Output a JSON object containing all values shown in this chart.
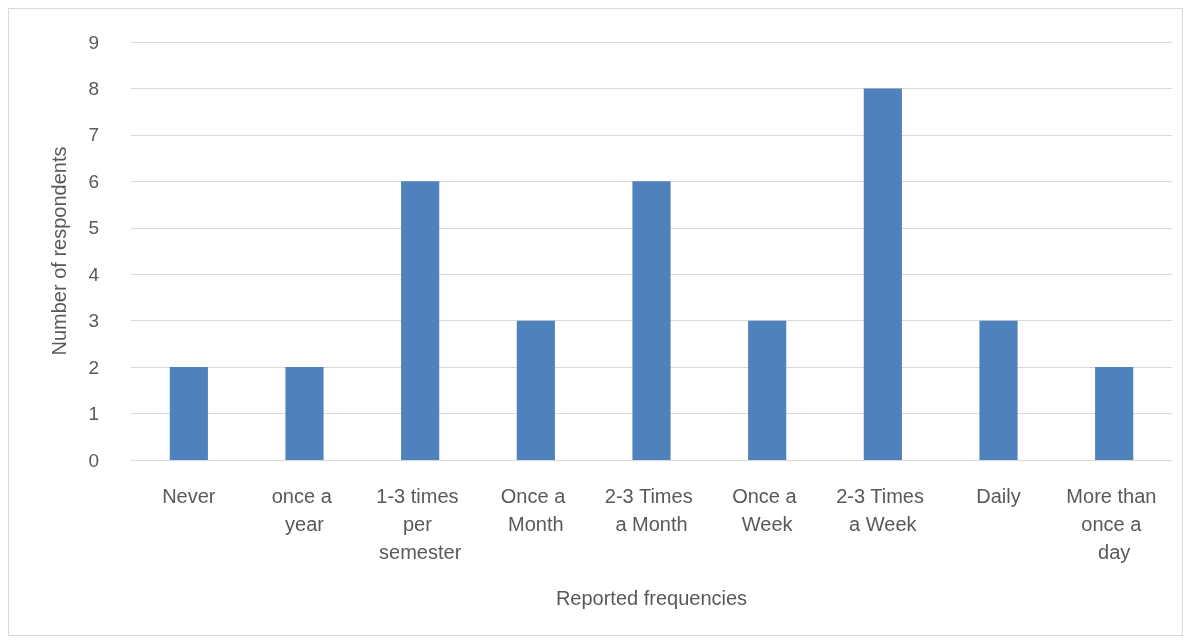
{
  "chart_data": {
    "type": "bar",
    "xlabel": "Reported frequencies",
    "ylabel": "Number of respondents",
    "categories": [
      "Never",
      "once a year",
      "1-3 times per semester",
      "Once a Month",
      "2-3 Times a Month",
      "Once a Week",
      "2-3 Times a Week",
      "Daily",
      "More than once a day"
    ],
    "values": [
      2,
      2,
      6,
      3,
      6,
      3,
      8,
      3,
      2
    ],
    "color": "#4f81bd",
    "ylim": [
      0,
      9
    ],
    "yticks": [
      0,
      1,
      2,
      3,
      4,
      5,
      6,
      7,
      8,
      9
    ],
    "grid": "y"
  }
}
